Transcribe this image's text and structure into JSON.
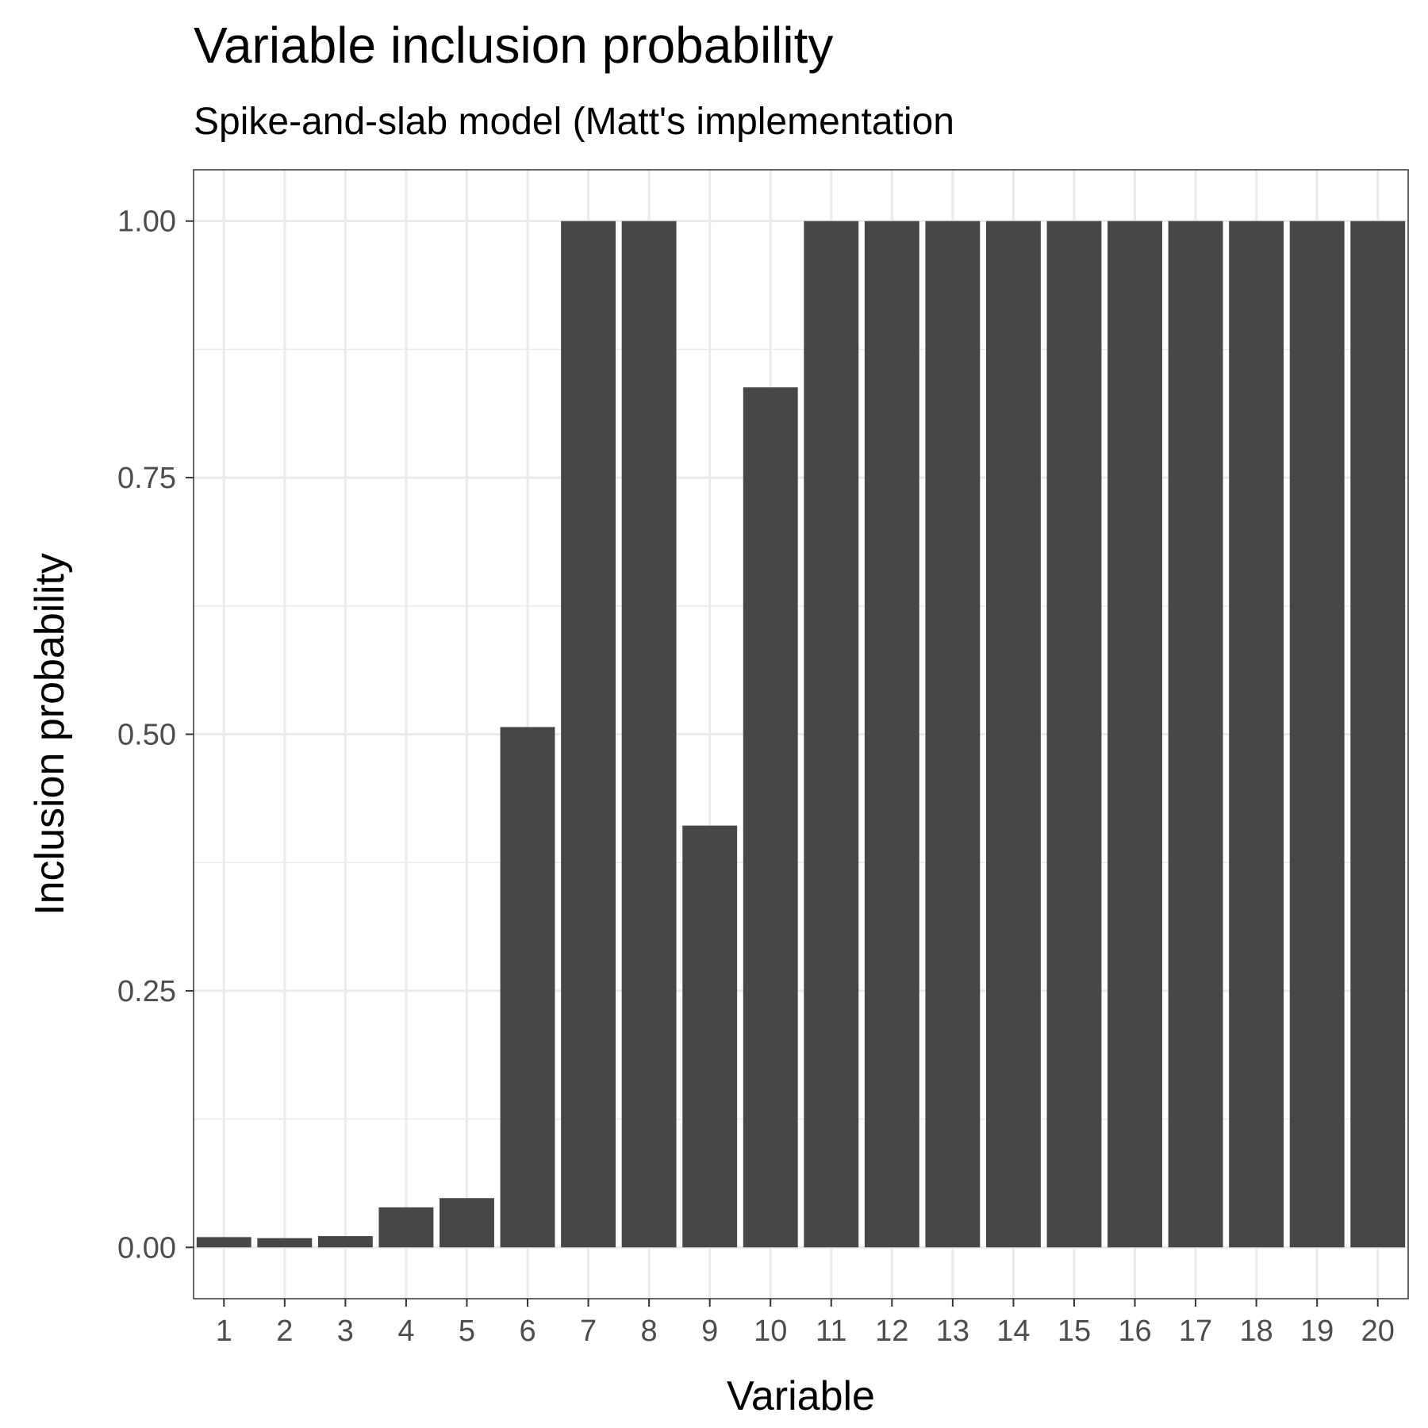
{
  "chart_data": {
    "type": "bar",
    "title": "Variable inclusion probability",
    "subtitle": "Spike-and-slab model (Matt's implementation",
    "xlabel": "Variable",
    "ylabel": "Inclusion probability",
    "categories": [
      "1",
      "2",
      "3",
      "4",
      "5",
      "6",
      "7",
      "8",
      "9",
      "10",
      "11",
      "12",
      "13",
      "14",
      "15",
      "16",
      "17",
      "18",
      "19",
      "20"
    ],
    "values": [
      0.01,
      0.009,
      0.011,
      0.039,
      0.048,
      0.507,
      1.0,
      1.0,
      0.411,
      0.838,
      1.0,
      1.0,
      1.0,
      1.0,
      1.0,
      1.0,
      1.0,
      1.0,
      1.0,
      1.0
    ],
    "ylim": [
      -0.05,
      1.05
    ],
    "yticks": [
      0,
      0.25,
      0.5,
      0.75,
      1.0
    ],
    "ytick_labels": [
      "0.00",
      "0.25",
      "0.50",
      "0.75",
      "1.00"
    ],
    "grid": true,
    "legend": "none",
    "colors": {
      "bar": "#474747",
      "grid": "#ebebeb",
      "panel_border": "#333333",
      "tick_text": "#4d4d4d"
    }
  }
}
